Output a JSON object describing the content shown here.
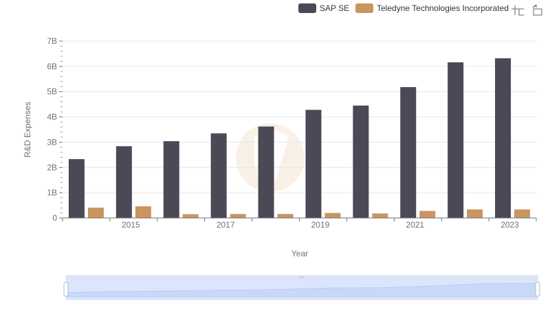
{
  "toolbox": {
    "zoom_icon": "zoom-icon",
    "restore_icon": "restore-icon"
  },
  "chart_data": {
    "type": "bar",
    "categories": [
      "2014",
      "2015",
      "2016",
      "2017",
      "2018",
      "2019",
      "2020",
      "2021",
      "2022",
      "2023"
    ],
    "x_tick_labels": [
      "2015",
      "2017",
      "2019",
      "2021",
      "2023"
    ],
    "series": [
      {
        "name": "SAP SE",
        "color": "#4a4955",
        "values": [
          2.33,
          2.84,
          3.04,
          3.35,
          3.62,
          4.28,
          4.45,
          5.18,
          6.16,
          6.32
        ]
      },
      {
        "name": "Teledyne Technologies Incorporated",
        "color": "#c9965f",
        "values": [
          0.41,
          0.46,
          0.15,
          0.16,
          0.16,
          0.2,
          0.18,
          0.28,
          0.34,
          0.34
        ]
      }
    ],
    "y_tick_labels": [
      "0",
      "1B",
      "2B",
      "3B",
      "4B",
      "5B",
      "6B",
      "7B"
    ],
    "ylim": [
      0,
      7
    ],
    "xlabel": "Year",
    "ylabel": "R&D Expenses",
    "legend_position": "top-right",
    "grid": true,
    "datazoom": {
      "start": 0,
      "end": 100
    }
  }
}
